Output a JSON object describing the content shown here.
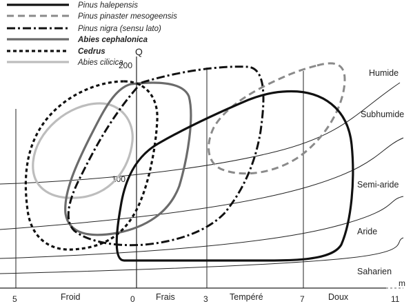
{
  "legend": [
    {
      "label": "Pinus halepensis",
      "style": "solid-black"
    },
    {
      "label": "Pinus pinaster mesogeensis",
      "style": "dashed-gray"
    },
    {
      "label": "Pinus nigra (sensu lato)",
      "style": "dashdot-black"
    },
    {
      "label": "Abies cephalonica",
      "style": "solid-darkgray"
    },
    {
      "label": "Cedrus",
      "style": "dotted-black"
    },
    {
      "label": "Abies cilicica",
      "style": "solid-lightgray"
    }
  ],
  "axes": {
    "y_label": "Q",
    "y_ticks": [
      "200",
      "100"
    ],
    "x_label": "m",
    "x_ticks": [
      "5",
      "0",
      "3",
      "7",
      "11"
    ]
  },
  "zones_bioclimatic": [
    "Humide",
    "Subhumide",
    "Semi-aride",
    "Aride",
    "Saharien"
  ],
  "zones_thermal": [
    "Froid",
    "Frais",
    "Tempéré",
    "Doux"
  ],
  "colors": {
    "black": "#111111",
    "dark_gray": "#6b6b6b",
    "mid_gray": "#8a8a8a",
    "light_gray": "#bdbdbd"
  }
}
